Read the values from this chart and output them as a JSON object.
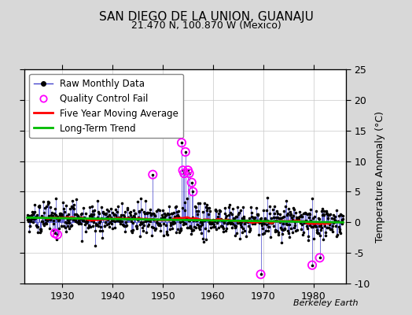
{
  "title": "SAN DIEGO DE LA UNION, GUANAJU",
  "subtitle": "21.470 N, 100.870 W (Mexico)",
  "ylabel": "Temperature Anomaly (°C)",
  "attribution": "Berkeley Earth",
  "year_start": 1923,
  "year_end": 1985,
  "ylim": [
    -10,
    25
  ],
  "yticks_right": [
    -10,
    -5,
    0,
    5,
    10,
    15,
    20,
    25
  ],
  "bg_color": "#d8d8d8",
  "plot_bg_color": "#ffffff",
  "raw_color": "#4444cc",
  "moving_avg_color": "#ff0000",
  "trend_color": "#00bb00",
  "qc_fail_color": "#ff00ff",
  "title_fontsize": 11,
  "subtitle_fontsize": 9,
  "legend_fontsize": 8.5,
  "tick_fontsize": 9
}
